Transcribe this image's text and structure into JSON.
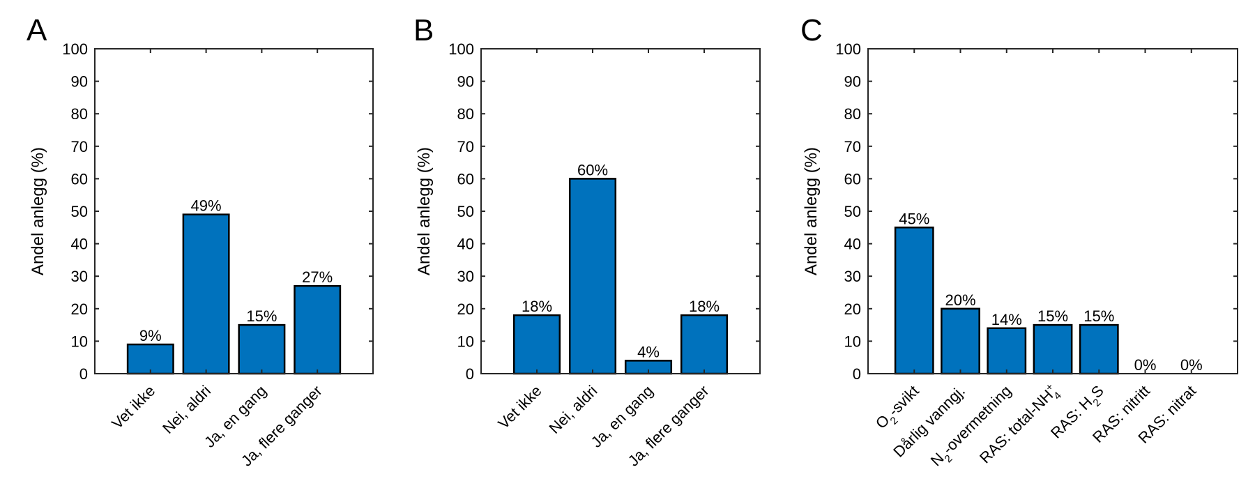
{
  "colors": {
    "bar": "#0072BD",
    "axis": "#262626",
    "background": "#ffffff"
  },
  "chart_data": [
    {
      "type": "bar",
      "panel": "A",
      "ylabel": "Andel anlegg (%)",
      "ylim": [
        0,
        100
      ],
      "yticks": [
        "0",
        "10",
        "20",
        "30",
        "40",
        "50",
        "60",
        "70",
        "80",
        "90",
        "100"
      ],
      "grid": false,
      "categories": [
        "Vet ikke",
        "Nei, aldri",
        "Ja, en gang",
        "Ja, flere ganger"
      ],
      "values": [
        9,
        49,
        15,
        27
      ],
      "data_labels": [
        "9%",
        "49%",
        "15%",
        "27%"
      ]
    },
    {
      "type": "bar",
      "panel": "B",
      "ylabel": "Andel anlegg (%)",
      "ylim": [
        0,
        100
      ],
      "yticks": [
        "0",
        "10",
        "20",
        "30",
        "40",
        "50",
        "60",
        "70",
        "80",
        "90",
        "100"
      ],
      "grid": false,
      "categories": [
        "Vet ikke",
        "Nei, aldri",
        "Ja, en gang",
        "Ja, flere ganger"
      ],
      "values": [
        18,
        60,
        4,
        18
      ],
      "data_labels": [
        "18%",
        "60%",
        "4%",
        "18%"
      ]
    },
    {
      "type": "bar",
      "panel": "C",
      "ylabel": "Andel anlegg (%)",
      "ylim": [
        0,
        100
      ],
      "yticks": [
        "0",
        "10",
        "20",
        "30",
        "40",
        "50",
        "60",
        "70",
        "80",
        "90",
        "100"
      ],
      "grid": false,
      "categories": [
        {
          "base": "O",
          "sub": "2",
          "after": "-svikt"
        },
        {
          "base": "Dårlig vanngj.",
          "sub": "",
          "after": ""
        },
        {
          "base": "N",
          "sub": "2",
          "after": "-overmetning"
        },
        {
          "base": "RAS: total-NH",
          "sup": "+",
          "sub": "4",
          "after": ""
        },
        {
          "base": "RAS: H",
          "sub": "2",
          "after": "S"
        },
        {
          "base": "RAS: nitritt",
          "sub": "",
          "after": ""
        },
        {
          "base": "RAS: nitrat",
          "sub": "",
          "after": ""
        }
      ],
      "values": [
        45,
        20,
        14,
        15,
        15,
        0,
        0
      ],
      "data_labels": [
        "45%",
        "20%",
        "14%",
        "15%",
        "15%",
        "0%",
        "0%"
      ]
    }
  ]
}
